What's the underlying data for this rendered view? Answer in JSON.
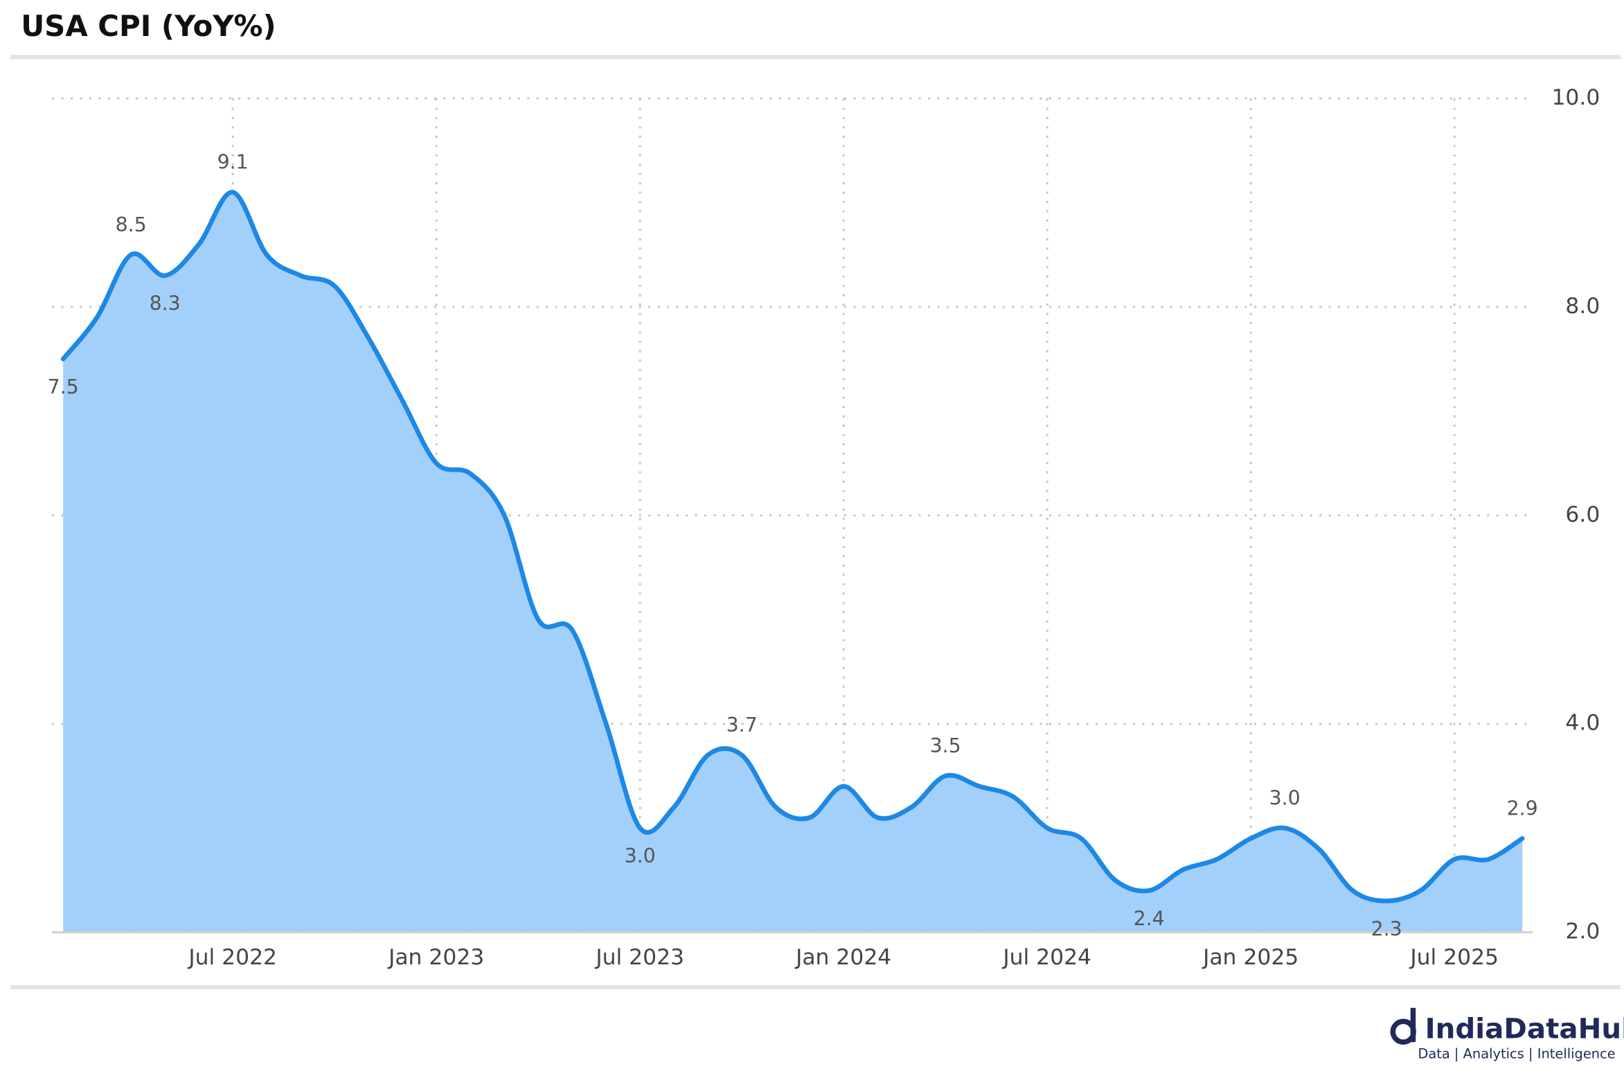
{
  "chart_data": {
    "type": "area",
    "title": "USA CPI (YoY%)",
    "x": [
      "2022-01",
      "2022-02",
      "2022-03",
      "2022-04",
      "2022-05",
      "2022-06",
      "2022-07",
      "2022-08",
      "2022-09",
      "2022-10",
      "2022-11",
      "2022-12",
      "2023-01",
      "2023-02",
      "2023-03",
      "2023-04",
      "2023-05",
      "2023-06",
      "2023-07",
      "2023-08",
      "2023-09",
      "2023-10",
      "2023-11",
      "2023-12",
      "2024-01",
      "2024-02",
      "2024-03",
      "2024-04",
      "2024-05",
      "2024-06",
      "2024-07",
      "2024-08",
      "2024-09",
      "2024-10",
      "2024-11",
      "2024-12",
      "2025-01",
      "2025-02",
      "2025-03",
      "2025-04",
      "2025-05",
      "2025-06",
      "2025-07",
      "2025-08"
    ],
    "values": [
      7.5,
      7.9,
      8.5,
      8.3,
      8.6,
      9.1,
      8.5,
      8.3,
      8.2,
      7.7,
      7.1,
      6.5,
      6.4,
      6.0,
      5.0,
      4.9,
      4.0,
      3.0,
      3.2,
      3.7,
      3.7,
      3.2,
      3.1,
      3.4,
      3.1,
      3.2,
      3.5,
      3.4,
      3.3,
      3.0,
      2.9,
      2.5,
      2.4,
      2.6,
      2.7,
      2.9,
      3.0,
      2.8,
      2.4,
      2.3,
      2.4,
      2.7,
      2.7,
      2.9
    ],
    "value_labels": [
      "7.5",
      null,
      "8.5",
      "8.3",
      null,
      "9.1",
      null,
      null,
      null,
      null,
      null,
      null,
      null,
      null,
      null,
      null,
      null,
      "3.0",
      null,
      null,
      "3.7",
      null,
      null,
      null,
      null,
      null,
      "3.5",
      null,
      null,
      null,
      null,
      null,
      "2.4",
      null,
      null,
      null,
      "3.0",
      null,
      null,
      "2.3",
      null,
      null,
      null,
      "2.9"
    ],
    "color": "#1e88e5",
    "fill_color": "#a3d0fb",
    "xlim": [
      "2022-01",
      "2025-09"
    ],
    "xticks": [
      {
        "value": "2022-07",
        "label": "Jul 2022"
      },
      {
        "value": "2023-01",
        "label": "Jan 2023"
      },
      {
        "value": "2023-07",
        "label": "Jul 2023"
      },
      {
        "value": "2024-01",
        "label": "Jan 2024"
      },
      {
        "value": "2024-07",
        "label": "Jul 2024"
      },
      {
        "value": "2025-01",
        "label": "Jan 2025"
      },
      {
        "value": "2025-07",
        "label": "Jul 2025"
      }
    ],
    "ylim": [
      2,
      10
    ],
    "yticks": [
      {
        "value": 2,
        "label": "2.0"
      },
      {
        "value": 4,
        "label": "4.0"
      },
      {
        "value": 6,
        "label": "6.0"
      },
      {
        "value": 8,
        "label": "8.0"
      },
      {
        "value": 10,
        "label": "10.0"
      }
    ],
    "grid": true
  },
  "branding": {
    "name": "IndiaDataHub",
    "tagline": "Data | Analytics | Intelligence"
  }
}
